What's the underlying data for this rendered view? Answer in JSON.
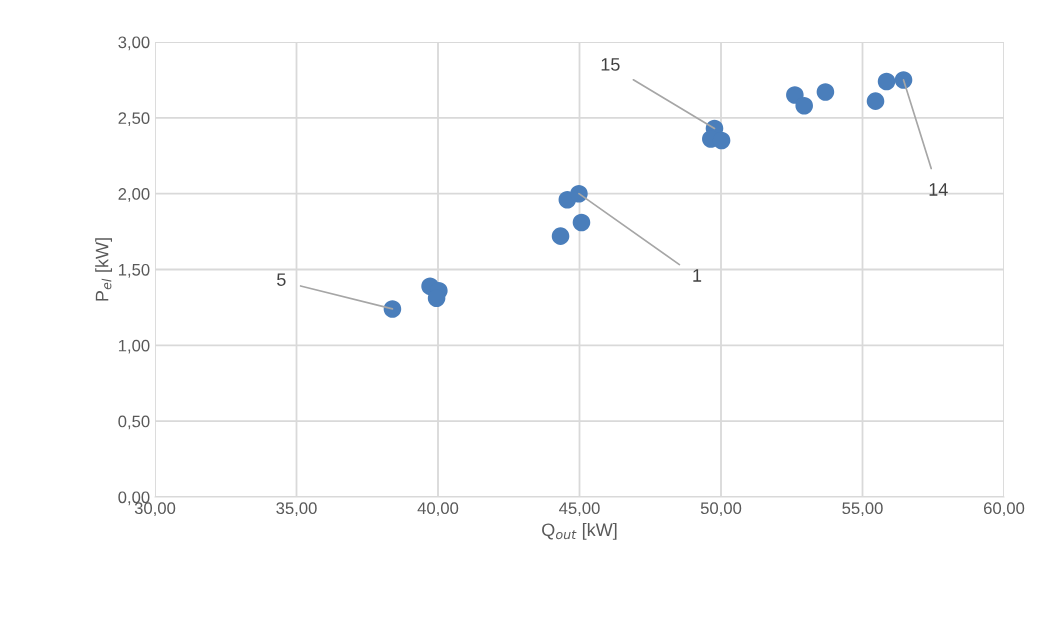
{
  "chart_data": {
    "type": "scatter",
    "xlabel": "Q$_{out}$ [kW]",
    "ylabel": "P$_{el}$ [kW]",
    "x": [
      38.39,
      39.72,
      40.03,
      39.95,
      44.57,
      44.98,
      45.07,
      44.33,
      49.77,
      49.64,
      50.02,
      52.61,
      52.94,
      53.69,
      55.46,
      55.85,
      56.45
    ],
    "values": [
      1.24,
      1.39,
      1.36,
      1.31,
      1.96,
      2.0,
      1.81,
      1.72,
      2.43,
      2.36,
      2.35,
      2.65,
      2.58,
      2.67,
      2.61,
      2.74,
      2.75
    ],
    "color": "#4a7ebb",
    "marker": "circle",
    "xlim": [
      30,
      60
    ],
    "ylim": [
      0,
      3
    ],
    "xticks": [
      {
        "value": 30,
        "label": "30,00"
      },
      {
        "value": 35,
        "label": "35,00"
      },
      {
        "value": 40,
        "label": "40,00"
      },
      {
        "value": 45,
        "label": "45,00"
      },
      {
        "value": 50,
        "label": "50,00"
      },
      {
        "value": 55,
        "label": "55,00"
      },
      {
        "value": 60,
        "label": "60,00"
      }
    ],
    "yticks": [
      {
        "value": 0,
        "label": "0,00"
      },
      {
        "value": 0.5,
        "label": "0,50"
      },
      {
        "value": 1,
        "label": "1,00"
      },
      {
        "value": 1.5,
        "label": "1,50"
      },
      {
        "value": 2,
        "label": "2,00"
      },
      {
        "value": 2.5,
        "label": "2,50"
      },
      {
        "value": 3,
        "label": "3,00"
      }
    ],
    "grid": true,
    "annotations": [
      {
        "text": "5",
        "x": 38.39,
        "y": 1.24
      },
      {
        "text": "1",
        "x": 44.98,
        "y": 2.0
      },
      {
        "text": "15",
        "x": 49.77,
        "y": 2.43
      },
      {
        "text": "14",
        "x": 56.45,
        "y": 2.75
      }
    ]
  }
}
